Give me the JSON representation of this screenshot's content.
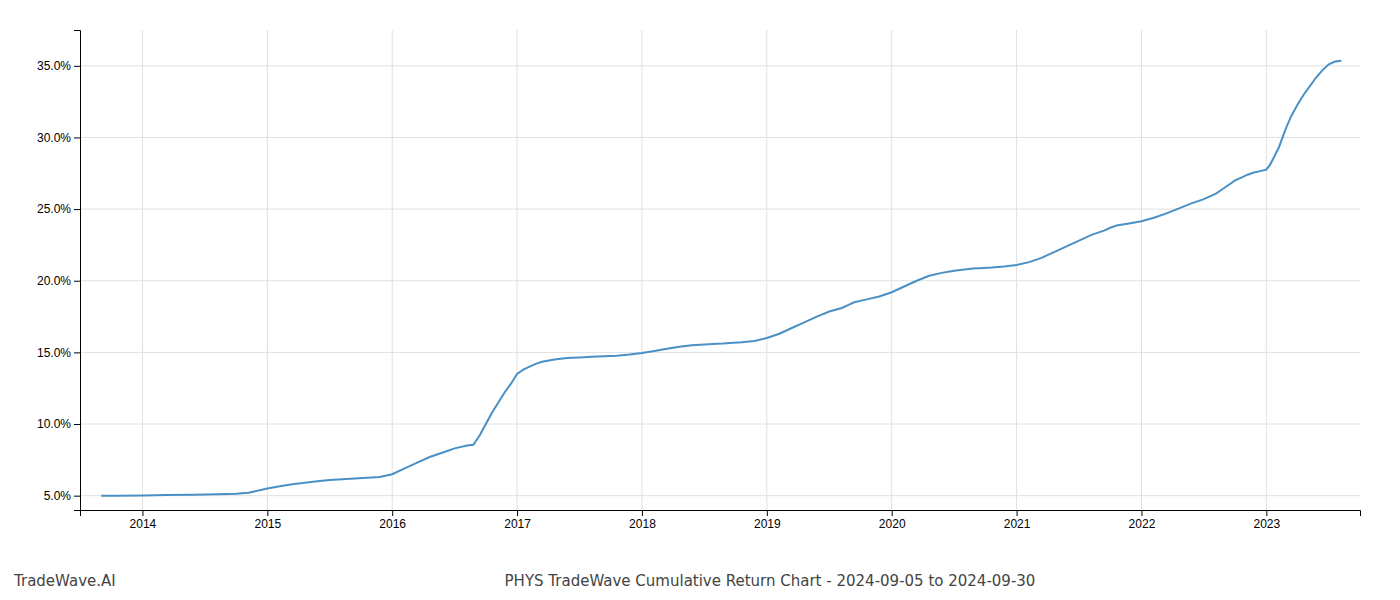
{
  "chart_data": {
    "type": "line",
    "title": "PHYS TradeWave Cumulative Return Chart - 2024-09-05 to 2024-09-30",
    "annotations": [
      "TradeWave.AI"
    ],
    "color": "#4a90c4",
    "grid": true,
    "x": [
      2013.67,
      2013.8,
      2014.0,
      2014.2,
      2014.4,
      2014.6,
      2014.75,
      2014.85,
      2015.0,
      2015.1,
      2015.2,
      2015.3,
      2015.4,
      2015.5,
      2015.6,
      2015.7,
      2015.8,
      2015.9,
      2016.0,
      2016.1,
      2016.2,
      2016.3,
      2016.4,
      2016.5,
      2016.6,
      2016.65,
      2016.7,
      2016.75,
      2016.8,
      2016.85,
      2016.9,
      2016.95,
      2017.0,
      2017.05,
      2017.1,
      2017.15,
      2017.2,
      2017.3,
      2017.4,
      2017.5,
      2017.6,
      2017.7,
      2017.8,
      2017.9,
      2018.0,
      2018.1,
      2018.2,
      2018.3,
      2018.4,
      2018.5,
      2018.6,
      2018.65,
      2018.7,
      2018.8,
      2018.9,
      2019.0,
      2019.1,
      2019.2,
      2019.3,
      2019.4,
      2019.5,
      2019.6,
      2019.65,
      2019.7,
      2019.8,
      2019.9,
      2020.0,
      2020.1,
      2020.2,
      2020.3,
      2020.4,
      2020.5,
      2020.6,
      2020.65,
      2020.7,
      2020.8,
      2020.9,
      2021.0,
      2021.1,
      2021.2,
      2021.3,
      2021.4,
      2021.5,
      2021.6,
      2021.7,
      2021.75,
      2021.8,
      2021.9,
      2022.0,
      2022.1,
      2022.2,
      2022.3,
      2022.4,
      2022.5,
      2022.6,
      2022.65,
      2022.7,
      2022.75,
      2022.8,
      2022.85,
      2022.9,
      2022.95,
      2023.0,
      2023.03,
      2023.06,
      2023.1,
      2023.13,
      2023.16,
      2023.2,
      2023.25,
      2023.3,
      2023.35,
      2023.4,
      2023.45,
      2023.5,
      2023.55,
      2023.6
    ],
    "values": [
      5.0,
      5.0,
      5.02,
      5.04,
      5.06,
      5.1,
      5.13,
      5.2,
      5.5,
      5.65,
      5.8,
      5.9,
      6.0,
      6.1,
      6.15,
      6.2,
      6.25,
      6.3,
      6.5,
      6.9,
      7.3,
      7.7,
      8.0,
      8.3,
      8.5,
      8.55,
      9.2,
      10.0,
      10.8,
      11.5,
      12.2,
      12.8,
      13.5,
      13.8,
      14.0,
      14.2,
      14.35,
      14.5,
      14.6,
      14.65,
      14.7,
      14.73,
      14.77,
      14.85,
      14.95,
      15.1,
      15.25,
      15.4,
      15.5,
      15.55,
      15.6,
      15.62,
      15.65,
      15.7,
      15.8,
      16.0,
      16.3,
      16.7,
      17.1,
      17.5,
      17.85,
      18.1,
      18.3,
      18.5,
      18.7,
      18.9,
      19.2,
      19.6,
      20.0,
      20.35,
      20.55,
      20.7,
      20.8,
      20.85,
      20.88,
      20.92,
      21.0,
      21.1,
      21.3,
      21.6,
      22.0,
      22.4,
      22.8,
      23.2,
      23.5,
      23.7,
      23.85,
      24.0,
      24.15,
      24.4,
      24.7,
      25.05,
      25.4,
      25.7,
      26.1,
      26.4,
      26.7,
      27.0,
      27.2,
      27.4,
      27.55,
      27.65,
      27.75,
      28.1,
      28.6,
      29.3,
      30.0,
      30.7,
      31.5,
      32.3,
      33.0,
      33.6,
      34.2,
      34.7,
      35.1,
      35.3,
      35.35
    ],
    "xlim": [
      2013.5,
      2023.75
    ],
    "ylim": [
      4.0,
      37.5
    ],
    "xticks": [
      2014,
      2015,
      2016,
      2017,
      2018,
      2019,
      2020,
      2021,
      2022,
      2023
    ],
    "yticks": [
      {
        "value": 5.0,
        "label": "5.0%"
      },
      {
        "value": 10.0,
        "label": "10.0%"
      },
      {
        "value": 15.0,
        "label": "15.0%"
      },
      {
        "value": 20.0,
        "label": "20.0%"
      },
      {
        "value": 25.0,
        "label": "25.0%"
      },
      {
        "value": 30.0,
        "label": "30.0%"
      },
      {
        "value": 35.0,
        "label": "35.0%"
      }
    ]
  }
}
